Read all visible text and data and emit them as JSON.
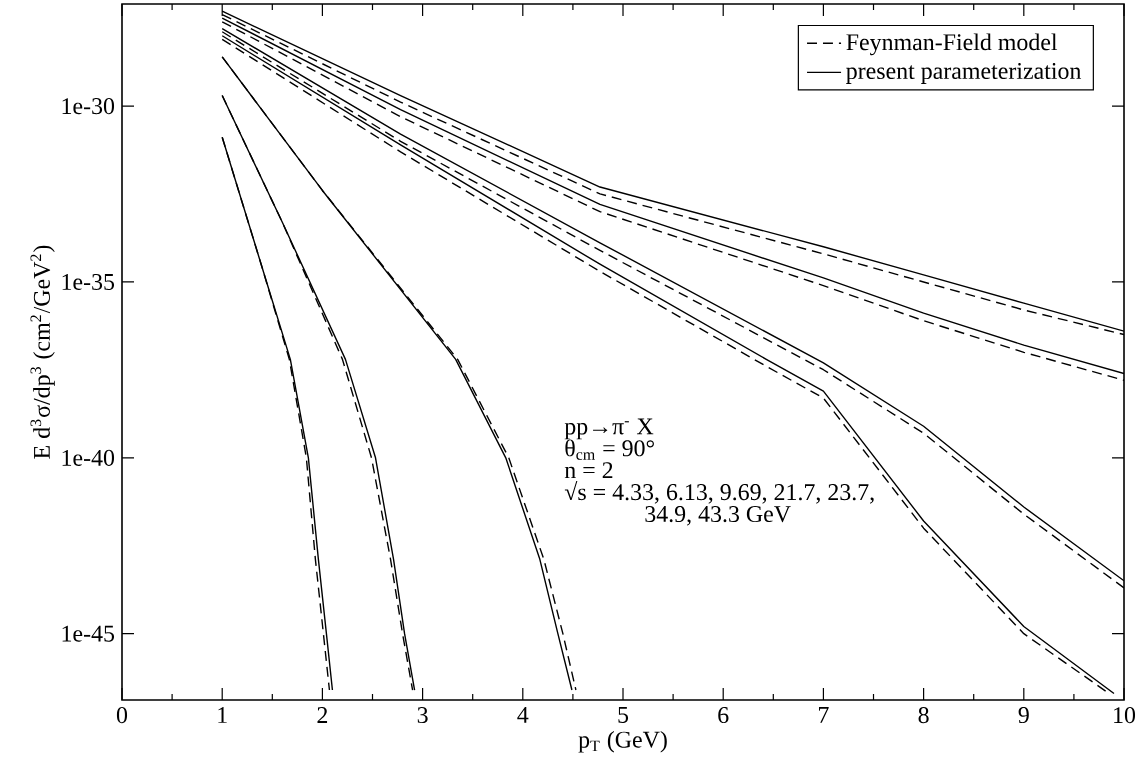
{
  "chart_data": {
    "type": "line",
    "xlabel": "p$_{T}$ (GeV)",
    "ylabel": "E d$^{3}$σ/dp$^{3}$ (cm$^{2}$/GeV$^{2}$)",
    "log": "y",
    "legend": "top right",
    "line_style": "solid",
    "color": "#000000",
    "xlim": [
      0,
      10
    ],
    "xticks": [
      0,
      1,
      2,
      3,
      4,
      5,
      6,
      7,
      8,
      9,
      10
    ],
    "ylim": [
      1.3e-47,
      8e-28
    ],
    "yticks": [
      {
        "value": 1e-45,
        "label": "1e-45"
      },
      {
        "value": 1e-40,
        "label": "1e-40"
      },
      {
        "value": 1e-35,
        "label": "1e-35"
      },
      {
        "value": 1e-30,
        "label": "1e-30"
      }
    ],
    "annotations": [
      "pp→π$^{-}$ X",
      "θ$_{cm}$ = 90°",
      "n = 2",
      "√s = 4.33, 6.13, 9.69, 21.7, 23.7, 34.9, 43.3 GeV"
    ],
    "series": [
      {
        "name": "Feynman-Field model",
        "line_style": "dashed",
        "x": [
          1,
          2.78,
          4.77,
          7,
          8,
          9,
          10
        ],
        "values": [
          4e-28,
          1.3e-30,
          3.2e-33,
          6.3e-35,
          1e-35,
          1.6e-36,
          3.2e-37
        ]
      },
      {
        "line_style": "dashed",
        "x": [
          1,
          2.78,
          4.77,
          7,
          8,
          9,
          10
        ],
        "values": [
          2.5e-28,
          5e-31,
          1e-33,
          7.9e-36,
          7.9e-37,
          1e-37,
          1.6e-38
        ]
      },
      {
        "line_style": "dashed",
        "x": [
          1,
          2.78,
          4.77,
          7,
          8,
          9,
          10
        ],
        "values": [
          1.3e-28,
          1e-31,
          7.9e-35,
          3.2e-38,
          5e-40,
          2.5e-42,
          2e-44
        ]
      },
      {
        "line_style": "dashed",
        "x": [
          1,
          2.78,
          4.77,
          6.43,
          7,
          8,
          9,
          9.85
        ],
        "values": [
          7.9e-29,
          5e-32,
          2e-35,
          4e-38,
          5e-39,
          1e-42,
          1e-45,
          2e-47
        ]
      },
      {
        "line_style": "dashed",
        "x": [
          1,
          2,
          3.35,
          3.86,
          4.21,
          4.4,
          4.53
        ],
        "values": [
          2.5e-29,
          4e-33,
          6.3e-38,
          1e-40,
          1.3e-43,
          1e-45,
          2.5e-47
        ]
      },
      {
        "line_style": "dashed",
        "x": [
          1,
          1.6,
          2.2,
          2.49,
          2.68,
          2.8,
          2.9
        ],
        "values": [
          2e-30,
          5e-34,
          6.3e-38,
          1e-40,
          1.3e-43,
          1e-45,
          2.5e-47
        ]
      },
      {
        "line_style": "dashed",
        "x": [
          1,
          1.4,
          1.67,
          1.84,
          1.93,
          2.01,
          2.07
        ],
        "values": [
          1.3e-31,
          2.5e-35,
          6.3e-38,
          1e-40,
          1.3e-43,
          1e-45,
          2.5e-47
        ]
      },
      {
        "name": "present parameterization",
        "x": [
          1,
          2.78,
          4.77,
          7,
          8,
          9,
          10
        ],
        "values": [
          5e-28,
          2e-30,
          5e-33,
          1e-34,
          1.6e-35,
          2.5e-36,
          4e-37
        ]
      },
      {
        "x": [
          1,
          2.78,
          4.77,
          7,
          8,
          9,
          10
        ],
        "values": [
          3.2e-28,
          7.9e-31,
          1.6e-33,
          1.3e-35,
          1.3e-36,
          1.6e-37,
          2.5e-38
        ]
      },
      {
        "x": [
          1,
          2.78,
          4.77,
          7,
          8,
          9,
          10
        ],
        "values": [
          1.6e-28,
          1.6e-31,
          1.3e-34,
          5e-38,
          7.9e-40,
          4e-42,
          3.2e-44
        ]
      },
      {
        "x": [
          1,
          2.78,
          4.77,
          6.43,
          7,
          8,
          9,
          9.9
        ],
        "values": [
          1e-28,
          7.9e-32,
          3.2e-35,
          6.3e-38,
          7.9e-39,
          1.6e-42,
          1.6e-45,
          2e-47
        ]
      },
      {
        "x": [
          1,
          2,
          3.33,
          3.83,
          4.17,
          4.35,
          4.49
        ],
        "values": [
          2.5e-29,
          4e-33,
          6.3e-38,
          1e-40,
          1.3e-43,
          1e-45,
          2.5e-47
        ]
      },
      {
        "x": [
          1,
          1.6,
          2.23,
          2.53,
          2.71,
          2.82,
          2.92
        ],
        "values": [
          2e-30,
          5e-34,
          6.3e-38,
          1e-40,
          1.3e-43,
          1e-45,
          2.5e-47
        ]
      },
      {
        "x": [
          1,
          1.4,
          1.68,
          1.86,
          1.96,
          2.04,
          2.1
        ],
        "values": [
          1.3e-31,
          2.5e-35,
          6.3e-38,
          1e-40,
          1.3e-43,
          1e-45,
          2.5e-47
        ]
      }
    ]
  }
}
